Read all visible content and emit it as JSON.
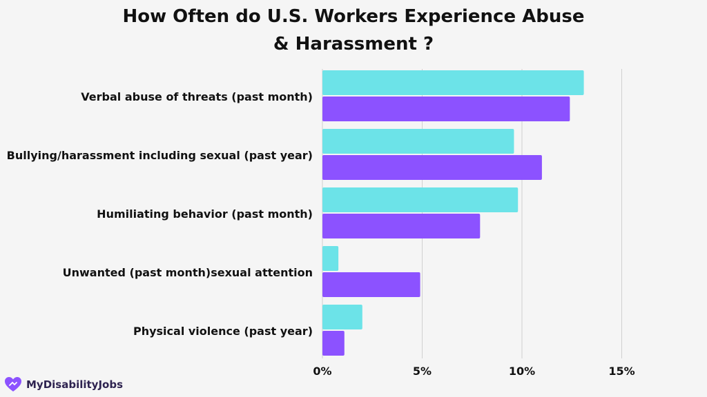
{
  "title_line1": "How Often do U.S. Workers Experience Abuse",
  "title_line2": "& Harassment ?",
  "logo_text": "MyDisabilityJobs",
  "colors": {
    "series1": "#6ce3e8",
    "series2": "#8c52ff",
    "grid": "#d0d0d0",
    "logo": "#8c52ff"
  },
  "chart_data": {
    "type": "bar",
    "orientation": "horizontal",
    "title": "How Often do U.S. Workers Experience Abuse & Harassment ?",
    "categories": [
      "Verbal abuse of threats (past month)",
      "Bullying/harassment including sexual (past year)",
      "Humiliating behavior (past month)",
      "Unwanted (past month)sexual attention",
      "Physical violence (past year)"
    ],
    "series": [
      {
        "values": [
          13.1,
          9.6,
          9.8,
          0.8,
          2.0
        ]
      },
      {
        "values": [
          12.4,
          11.0,
          7.9,
          4.9,
          1.1
        ]
      }
    ],
    "xlim": [
      0,
      15
    ],
    "xticks": [
      "0%",
      "5%",
      "10%",
      "15%"
    ],
    "xtick_values": [
      0,
      5,
      10,
      15
    ],
    "grid": true,
    "legend": "none"
  }
}
